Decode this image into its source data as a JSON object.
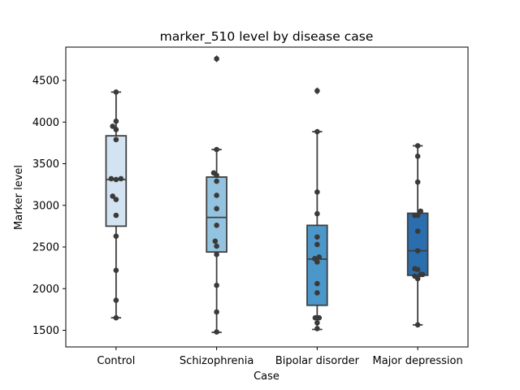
{
  "chart_data": {
    "type": "box",
    "title": "marker_510 level by disease case",
    "xlabel": "Case",
    "ylabel": "Marker level",
    "categories": [
      "Control",
      "Schizophrenia",
      "Bipolar disorder",
      "Major depression"
    ],
    "ylim": [
      1300,
      4900
    ],
    "yticks": [
      1500,
      2000,
      2500,
      3000,
      3500,
      4000,
      4500
    ],
    "grid": false,
    "colors": [
      "#d3e3f1",
      "#94c3df",
      "#4b97c9",
      "#2b6eae"
    ],
    "boxes": [
      {
        "q1": 2750,
        "median": 3310,
        "q3": 3835,
        "whisker_low": 1650,
        "whisker_high": 4360,
        "outliers": []
      },
      {
        "q1": 2440,
        "median": 2855,
        "q3": 3340,
        "whisker_low": 1475,
        "whisker_high": 3670,
        "outliers": [
          4760
        ]
      },
      {
        "q1": 1800,
        "median": 2355,
        "q3": 2760,
        "whisker_low": 1510,
        "whisker_high": 3885,
        "outliers": [
          4375
        ]
      },
      {
        "q1": 2160,
        "median": 2455,
        "q3": 2905,
        "whisker_low": 1565,
        "whisker_high": 3715,
        "outliers": []
      }
    ],
    "points": [
      [
        {
          "offset": 0,
          "value": 4360
        },
        {
          "offset": -0.7,
          "value": 3950
        },
        {
          "offset": 0,
          "value": 4010
        },
        {
          "offset": 0,
          "value": 3910
        },
        {
          "offset": 0,
          "value": 3790
        },
        {
          "offset": -1,
          "value": 3320
        },
        {
          "offset": 0,
          "value": 3310
        },
        {
          "offset": 1,
          "value": 3320
        },
        {
          "offset": -0.7,
          "value": 3110
        },
        {
          "offset": 0,
          "value": 3070
        },
        {
          "offset": 0,
          "value": 2880
        },
        {
          "offset": 0,
          "value": 2630
        },
        {
          "offset": 0,
          "value": 2220
        },
        {
          "offset": 0,
          "value": 1860
        },
        {
          "offset": 0,
          "value": 1650
        }
      ],
      [
        {
          "offset": 0,
          "value": 4760
        },
        {
          "offset": 0,
          "value": 3670
        },
        {
          "offset": -0.6,
          "value": 3390
        },
        {
          "offset": 0,
          "value": 3360
        },
        {
          "offset": 0,
          "value": 3290
        },
        {
          "offset": 0,
          "value": 3120
        },
        {
          "offset": 0,
          "value": 2960
        },
        {
          "offset": 0,
          "value": 2760
        },
        {
          "offset": -0.3,
          "value": 2570
        },
        {
          "offset": 0,
          "value": 2510
        },
        {
          "offset": 0,
          "value": 2410
        },
        {
          "offset": 0,
          "value": 2040
        },
        {
          "offset": 0,
          "value": 1720
        },
        {
          "offset": 0,
          "value": 1480
        }
      ],
      [
        {
          "offset": 0,
          "value": 4375
        },
        {
          "offset": 0,
          "value": 3885
        },
        {
          "offset": 0,
          "value": 3160
        },
        {
          "offset": 0,
          "value": 2900
        },
        {
          "offset": 0,
          "value": 2620
        },
        {
          "offset": 0,
          "value": 2530
        },
        {
          "offset": 0.4,
          "value": 2380
        },
        {
          "offset": -0.5,
          "value": 2360
        },
        {
          "offset": 0,
          "value": 2320
        },
        {
          "offset": 0,
          "value": 2060
        },
        {
          "offset": 0,
          "value": 1950
        },
        {
          "offset": -0.4,
          "value": 1650
        },
        {
          "offset": 0,
          "value": 1650
        },
        {
          "offset": 0.4,
          "value": 1650
        },
        {
          "offset": 0,
          "value": 1590
        },
        {
          "offset": 0,
          "value": 1520
        }
      ],
      [
        {
          "offset": 0,
          "value": 3715
        },
        {
          "offset": 0,
          "value": 3590
        },
        {
          "offset": 0,
          "value": 3280
        },
        {
          "offset": 0.6,
          "value": 2930
        },
        {
          "offset": -0.6,
          "value": 2880
        },
        {
          "offset": 0,
          "value": 2880
        },
        {
          "offset": 0,
          "value": 2690
        },
        {
          "offset": 0,
          "value": 2455
        },
        {
          "offset": -0.6,
          "value": 2240
        },
        {
          "offset": 0,
          "value": 2230
        },
        {
          "offset": 0.6,
          "value": 2170
        },
        {
          "offset": 1,
          "value": 2170
        },
        {
          "offset": -0.6,
          "value": 2150
        },
        {
          "offset": 0,
          "value": 2120
        },
        {
          "offset": 0,
          "value": 1565
        }
      ]
    ]
  }
}
